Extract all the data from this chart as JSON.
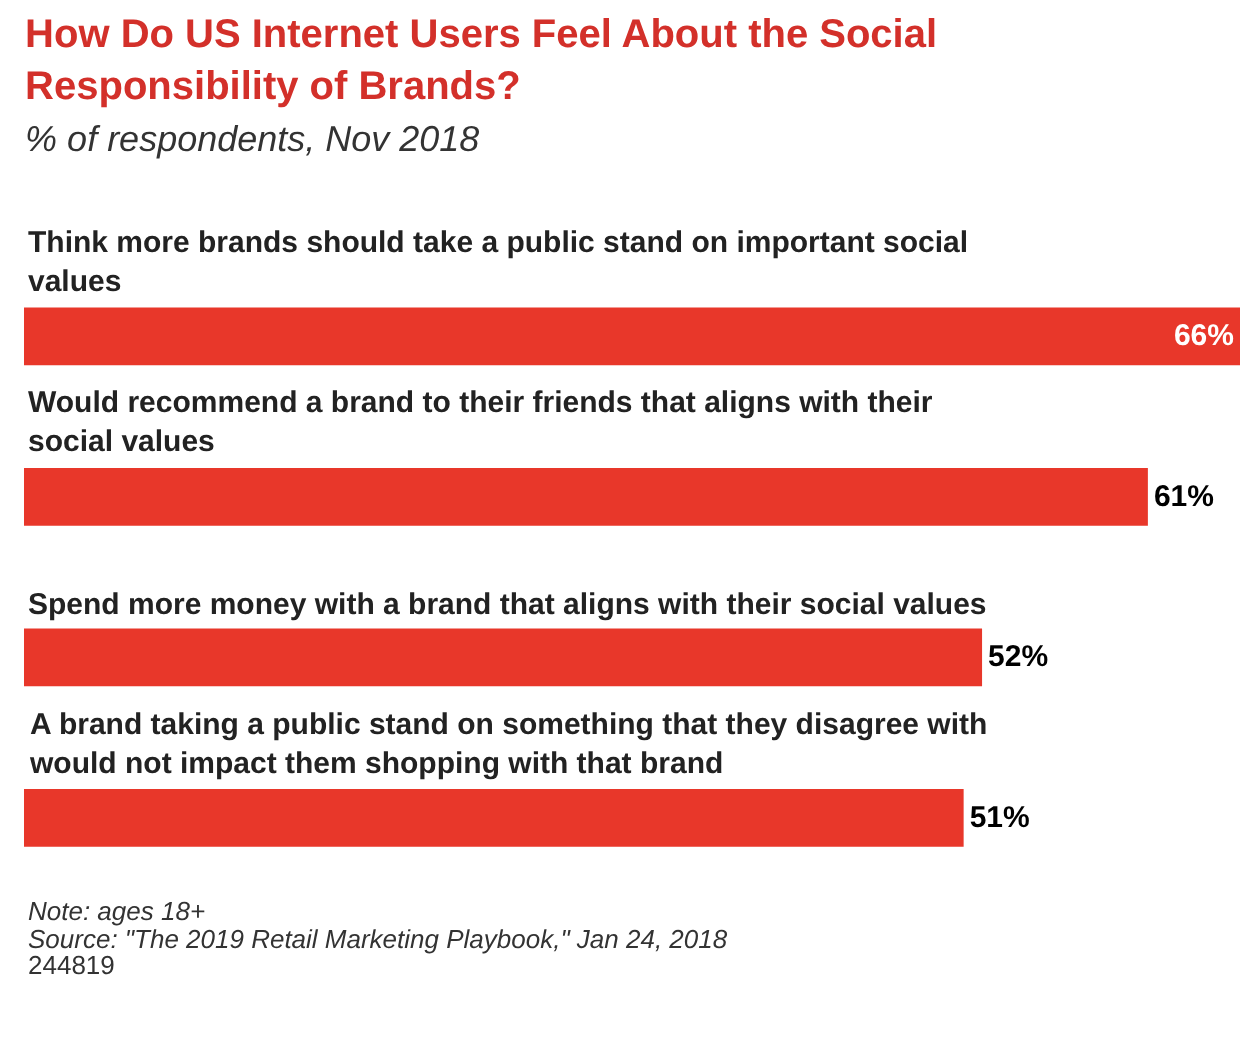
{
  "chart_data": {
    "type": "bar",
    "orientation": "horizontal",
    "title": "How Do US Internet Users Feel About the Social Responsibility of Brands?",
    "subtitle": "% of respondents, Nov 2018",
    "categories": [
      "Think more brands should take a public stand on important social values",
      "Would recommend a brand to their friends that aligns with their social values",
      "Spend more money with a brand that aligns with their social values",
      "A brand taking a public stand on something that they disagree with would not impact them shopping with that brand"
    ],
    "values": [
      66,
      61,
      52,
      51
    ],
    "value_labels": [
      "66%",
      "61%",
      "52%",
      "51%"
    ],
    "color": "#e8372a",
    "xlim": [
      0,
      66
    ],
    "tick_labels": false,
    "legend": false,
    "annotations": [
      "Note: ages 18+",
      "Source: \"The 2019 Retail Marketing Playbook,\" Jan 24, 2018",
      "244819"
    ]
  }
}
